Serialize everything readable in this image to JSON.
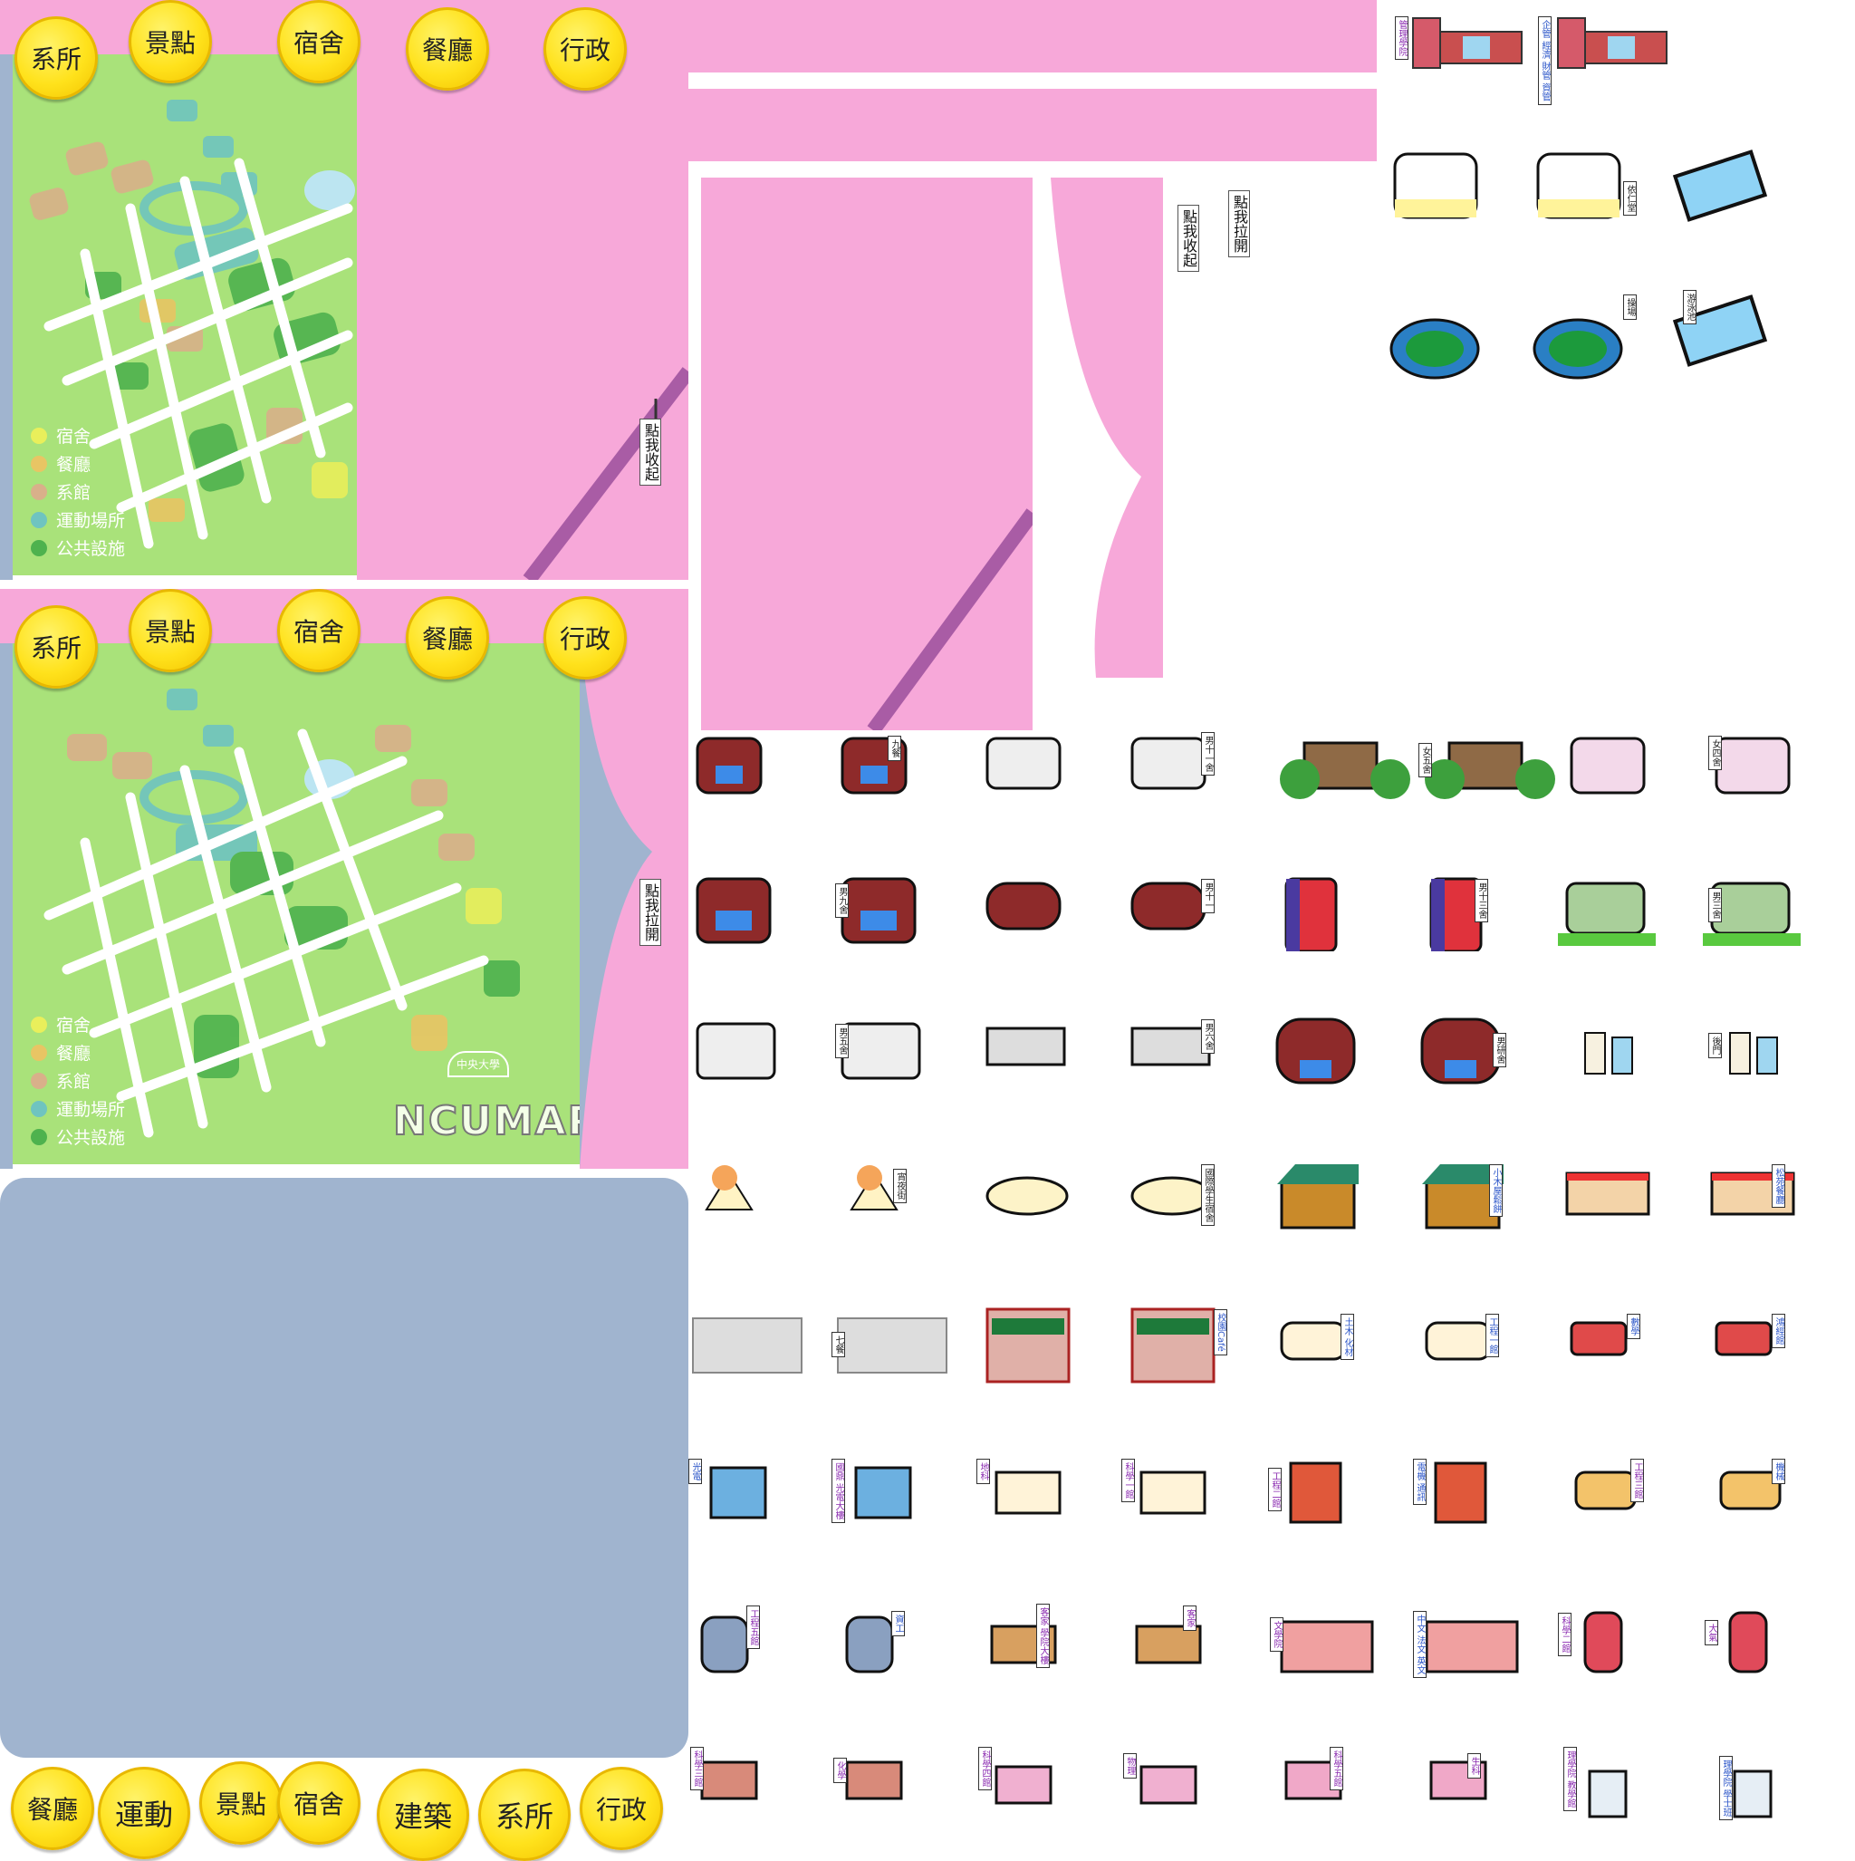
{
  "colors": {
    "map_green": "#a9e27a",
    "curtain_pink": "#f7a8d9",
    "coin_yellow": "#ffe21c",
    "panel_blue": "#a0b4cf",
    "rope_purple": "#a95ca5"
  },
  "top_panel": {
    "buttons": [
      "系所",
      "景點",
      "宿舍",
      "餐廳",
      "行政"
    ],
    "pull_tag": "點我收起"
  },
  "mid_panel": {
    "buttons": [
      "系所",
      "景點",
      "宿舍",
      "餐廳",
      "行政"
    ],
    "pull_tag": "點我拉開",
    "logo_text": "NCUMAP",
    "logo_seal": "中央大學"
  },
  "legend": [
    {
      "label": "宿舍",
      "color": "#e9ef5b"
    },
    {
      "label": "餐廳",
      "color": "#e8c564"
    },
    {
      "label": "系館",
      "color": "#d9b08a"
    },
    {
      "label": "運動場所",
      "color": "#6fc4c0"
    },
    {
      "label": "公共設施",
      "color": "#4eb24e"
    }
  ],
  "curtain_tags": [
    "點我收起",
    "點我拉開"
  ],
  "bottom_buttons": [
    "餐廳",
    "運動",
    "景點",
    "宿舍",
    "建築",
    "系所",
    "行政"
  ],
  "sprite_labels": {
    "row0": [
      "管理學院",
      "企管 經濟 財管 資管"
    ],
    "row1": [
      "依仁堂",
      "操場",
      "游泳池"
    ],
    "row2": [
      "九餐",
      "男十一舍",
      "女五舍",
      "女四舍"
    ],
    "row3": [
      "男九舍",
      "男十一",
      "男十三舍",
      "男三舍"
    ],
    "row4": [
      "男五舍",
      "男六舍",
      "男研舍",
      "後門"
    ],
    "row5": [
      "宵夜街",
      "國際學生宿舍",
      "小木屋鬆餅",
      "松苑餐廳"
    ],
    "row6": [
      "七餐",
      "校園Café",
      "土木 化材",
      "工程一館",
      "數學",
      "鴻經館"
    ],
    "row7": [
      "光電",
      "國鼎 光電大樓",
      "地科",
      "科學一館",
      "工程二館",
      "電機 通訊",
      "工程三館",
      "機械"
    ],
    "row8": [
      "工程五館",
      "資工",
      "客家 學院大樓",
      "客家",
      "文學院",
      "中文 法文 英文",
      "科學二館",
      "大氣"
    ],
    "row9": [
      "科學三館",
      "化學",
      "科學四館",
      "物理",
      "科學五館",
      "生科",
      "理學院 教學館",
      "理學院 學士班"
    ]
  }
}
